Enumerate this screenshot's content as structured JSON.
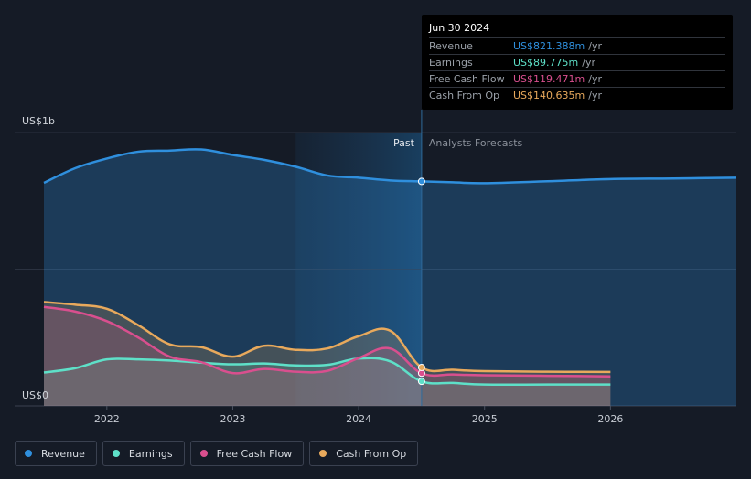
{
  "chart_data": {
    "type": "area",
    "title": "",
    "y_labels": {
      "top": "US$1b",
      "bottom": "US$0"
    },
    "ylim": [
      0,
      1000
    ],
    "x_range": [
      2021.5,
      2027.0
    ],
    "x_ticks": [
      "2022",
      "2023",
      "2024",
      "2025",
      "2026"
    ],
    "x_tick_values": [
      2022,
      2023,
      2024,
      2025,
      2026
    ],
    "past_start": 2023.5,
    "divider": 2024.5,
    "region_labels": {
      "past": "Past",
      "forecast": "Analysts Forecasts"
    },
    "series": [
      {
        "name": "Revenue",
        "color": "#2f8fdd",
        "x": [
          2021.5,
          2021.75,
          2022.0,
          2022.25,
          2022.5,
          2022.75,
          2023.0,
          2023.25,
          2023.5,
          2023.75,
          2024.0,
          2024.25,
          2024.5,
          2024.75,
          2025.0,
          2025.5,
          2026.0,
          2026.5,
          2027.0
        ],
        "values": [
          816,
          870,
          905,
          930,
          934,
          938,
          918,
          900,
          875,
          843,
          835,
          825,
          821.388,
          818,
          815,
          822,
          830,
          832,
          835
        ]
      },
      {
        "name": "Earnings",
        "color": "#5ee0c8",
        "x": [
          2021.5,
          2021.75,
          2022.0,
          2022.25,
          2022.5,
          2022.75,
          2023.0,
          2023.25,
          2023.5,
          2023.75,
          2024.0,
          2024.25,
          2024.5,
          2024.75,
          2025.0,
          2025.5,
          2026.0
        ],
        "values": [
          122,
          138,
          170,
          170,
          166,
          158,
          152,
          155,
          148,
          150,
          173,
          163,
          89.775,
          84,
          78,
          78,
          78
        ]
      },
      {
        "name": "Free Cash Flow",
        "color": "#d94f8e",
        "x": [
          2021.5,
          2021.75,
          2022.0,
          2022.25,
          2022.5,
          2022.75,
          2023.0,
          2023.25,
          2023.5,
          2023.75,
          2024.0,
          2024.25,
          2024.5,
          2024.75,
          2025.0,
          2025.5,
          2026.0
        ],
        "values": [
          362,
          345,
          310,
          250,
          180,
          160,
          120,
          135,
          125,
          128,
          175,
          210,
          119.471,
          115,
          112,
          110,
          108
        ]
      },
      {
        "name": "Cash From Op",
        "color": "#e8a95c",
        "x": [
          2021.5,
          2021.75,
          2022.0,
          2022.25,
          2022.5,
          2022.75,
          2023.0,
          2023.25,
          2023.5,
          2023.75,
          2024.0,
          2024.25,
          2024.5,
          2024.75,
          2025.0,
          2025.5,
          2026.0
        ],
        "values": [
          380,
          370,
          355,
          295,
          225,
          215,
          180,
          220,
          205,
          210,
          255,
          275,
          140.635,
          132,
          127,
          125,
          124
        ]
      }
    ]
  },
  "tooltip": {
    "date": "Jun 30 2024",
    "rows": [
      {
        "label": "Revenue",
        "value": "US$821.388m",
        "unit": "/yr",
        "color": "#2f8fdd"
      },
      {
        "label": "Earnings",
        "value": "US$89.775m",
        "unit": "/yr",
        "color": "#5ee0c8"
      },
      {
        "label": "Free Cash Flow",
        "value": "US$119.471m",
        "unit": "/yr",
        "color": "#d94f8e"
      },
      {
        "label": "Cash From Op",
        "value": "US$140.635m",
        "unit": "/yr",
        "color": "#e8a95c"
      }
    ]
  },
  "legend": [
    {
      "label": "Revenue",
      "color": "#2f8fdd"
    },
    {
      "label": "Earnings",
      "color": "#5ee0c8"
    },
    {
      "label": "Free Cash Flow",
      "color": "#d94f8e"
    },
    {
      "label": "Cash From Op",
      "color": "#e8a95c"
    }
  ]
}
